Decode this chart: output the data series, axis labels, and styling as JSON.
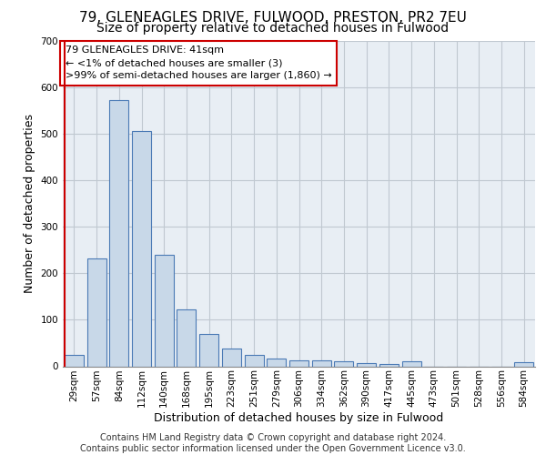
{
  "title_line1": "79, GLENEAGLES DRIVE, FULWOOD, PRESTON, PR2 7EU",
  "title_line2": "Size of property relative to detached houses in Fulwood",
  "xlabel": "Distribution of detached houses by size in Fulwood",
  "ylabel": "Number of detached properties",
  "categories": [
    "29sqm",
    "57sqm",
    "84sqm",
    "112sqm",
    "140sqm",
    "168sqm",
    "195sqm",
    "223sqm",
    "251sqm",
    "279sqm",
    "306sqm",
    "334sqm",
    "362sqm",
    "390sqm",
    "417sqm",
    "445sqm",
    "473sqm",
    "501sqm",
    "528sqm",
    "556sqm",
    "584sqm"
  ],
  "values": [
    25,
    233,
    573,
    507,
    240,
    123,
    70,
    38,
    25,
    17,
    12,
    12,
    10,
    7,
    5,
    10,
    0,
    0,
    0,
    0,
    8
  ],
  "bar_color": "#c8d8e8",
  "bar_edge_color": "#4a7ab5",
  "annotation_text": "79 GLENEAGLES DRIVE: 41sqm\n← <1% of detached houses are smaller (3)\n>99% of semi-detached houses are larger (1,860) →",
  "annotation_box_color": "#ffffff",
  "annotation_box_edge_color": "#cc0000",
  "grid_color": "#c0c8d0",
  "bg_color": "#e8eef4",
  "ylim": [
    0,
    700
  ],
  "footer_text": "Contains HM Land Registry data © Crown copyright and database right 2024.\nContains public sector information licensed under the Open Government Licence v3.0.",
  "annotation_fontsize": 8.0,
  "title_fontsize1": 11,
  "title_fontsize2": 10,
  "xlabel_fontsize": 9,
  "ylabel_fontsize": 9,
  "tick_fontsize": 7.5,
  "footer_fontsize": 7
}
